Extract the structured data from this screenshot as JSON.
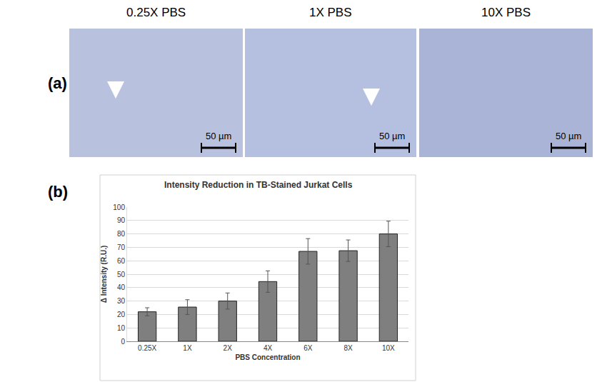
{
  "panel_labels": [
    "(a)",
    "(b)"
  ],
  "images": [
    {
      "title": "0.25X PBS",
      "scale_bar": "50 µm"
    },
    {
      "title": "1X PBS",
      "scale_bar": "50 µm"
    },
    {
      "title": "10X PBS",
      "scale_bar": "50 µm"
    }
  ],
  "chart_data": {
    "type": "bar",
    "title": "Intensity Reduction in TB-Stained Jurkat Cells",
    "x_label": "PBS Concentration",
    "y_label": "Δ Intensity (R.U.)",
    "categories": [
      "0.25X",
      "1X",
      "2X",
      "4X",
      "6X",
      "8X",
      "10X"
    ],
    "values": [
      22,
      25.5,
      30,
      44.5,
      67,
      67.5,
      80
    ],
    "errors": [
      3,
      5.5,
      6,
      8,
      9.5,
      8,
      9.5
    ],
    "color": "#7f7f7f",
    "ylim": [
      0,
      100
    ],
    "yticks": [
      0,
      10,
      20,
      30,
      40,
      50,
      60,
      70,
      80,
      90,
      100
    ],
    "grid": true
  }
}
